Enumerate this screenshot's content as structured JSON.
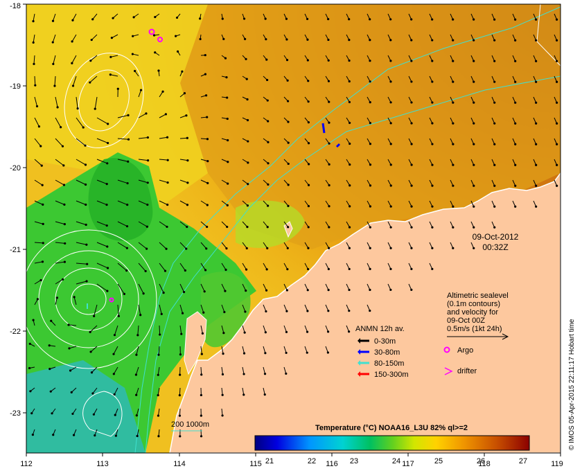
{
  "map": {
    "date": "09-Oct-2012",
    "time": "00:32Z",
    "credit": "© IMOS 05-Apr-2015 22:11:17 Hobart time"
  },
  "axes": {
    "x_ticks": [
      "112",
      "113",
      "114",
      "115",
      "116",
      "117",
      "118",
      "119"
    ],
    "y_ticks": [
      "-18",
      "-19",
      "-20",
      "-21",
      "-22",
      "-23"
    ]
  },
  "altimetry": {
    "line1": "Altimetric sealevel",
    "line2": "(0.1m contours)",
    "line3": "and velocity for",
    "line4": "09-Oct 00Z",
    "line5": "0.5m/s (1kt 24h)"
  },
  "anmn": {
    "title": "ANMN 12h av.",
    "items": [
      {
        "label": "0-30m",
        "color": "#000000"
      },
      {
        "label": "30-80m",
        "color": "#0000ff"
      },
      {
        "label": "80-150m",
        "color": "#40e0d0"
      },
      {
        "label": "150-300m",
        "color": "#ff0000"
      }
    ]
  },
  "markers": {
    "argo": "Argo",
    "drifter": "drifter",
    "argo_color": "#ff00ff"
  },
  "isobath": {
    "label": "200  1000m",
    "color": "#40e0d0"
  },
  "colorbar": {
    "title": "Temperature (°C) NOAA16_L3U 82% ql>=2",
    "ticks": [
      "21",
      "22",
      "23",
      "24",
      "25",
      "26",
      "27"
    ]
  },
  "colors": {
    "land": "#fdc89e",
    "warm": "#c86400",
    "cool": "#3cc832"
  }
}
